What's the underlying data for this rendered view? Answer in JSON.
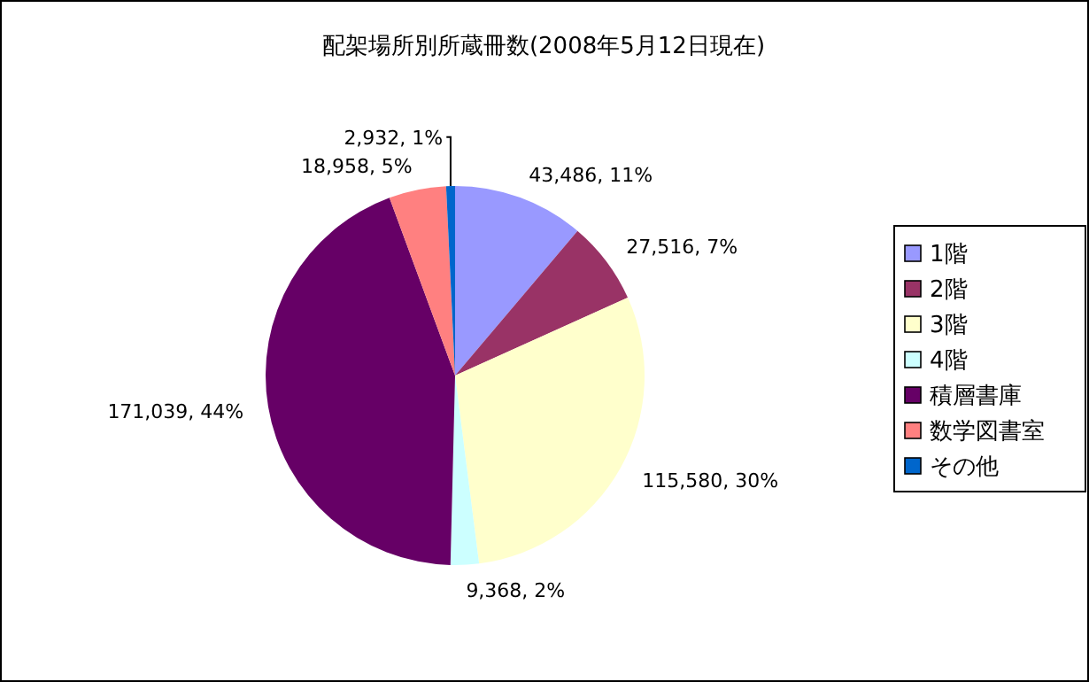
{
  "chart_data": {
    "type": "pie",
    "title": "配架場所別所蔵冊数(2008年5月12日現在)",
    "categories": [
      "1階",
      "2階",
      "3階",
      "4階",
      "積層書庫",
      "数学図書室",
      "その他"
    ],
    "values": [
      43486,
      27516,
      115580,
      9368,
      171039,
      18958,
      2932
    ],
    "value_labels": [
      "43,486, 11%",
      "27,516, 7%",
      "115,580, 30%",
      "9,368, 2%",
      "171,039, 44%",
      "18,958, 5%",
      "2,932, 1%"
    ],
    "colors": [
      "#9999ff",
      "#993366",
      "#ffffcc",
      "#ccffff",
      "#660066",
      "#ff8080",
      "#0066cc"
    ],
    "legend": "right"
  }
}
